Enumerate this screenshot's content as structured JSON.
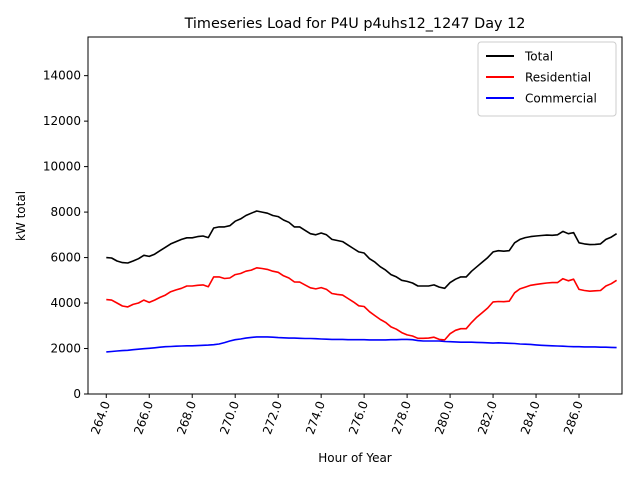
{
  "chart_data": {
    "type": "line",
    "title": "Timeseries Load for P4U p4uhs12_1247  Day 12",
    "xlabel": "Hour of Year",
    "ylabel": "kW total",
    "xlim": [
      263.15,
      288.0
    ],
    "ylim": [
      0,
      15700
    ],
    "x_ticks": [
      264,
      266,
      268,
      270,
      272,
      274,
      276,
      278,
      280,
      282,
      284,
      286
    ],
    "x_tick_labels": [
      "264.0",
      "266.0",
      "268.0",
      "270.0",
      "272.0",
      "274.0",
      "276.0",
      "278.0",
      "280.0",
      "282.0",
      "284.0",
      "286.0"
    ],
    "y_ticks": [
      0,
      2000,
      4000,
      6000,
      8000,
      10000,
      12000,
      14000
    ],
    "y_tick_labels": [
      "0",
      "2000",
      "4000",
      "6000",
      "8000",
      "10000",
      "12000",
      "14000"
    ],
    "legend_position": "top-right",
    "x": [
      264.0,
      264.25,
      264.5,
      264.75,
      265.0,
      265.25,
      265.5,
      265.75,
      266.0,
      266.25,
      266.5,
      266.75,
      267.0,
      267.25,
      267.5,
      267.75,
      268.0,
      268.25,
      268.5,
      268.75,
      269.0,
      269.25,
      269.5,
      269.75,
      270.0,
      270.25,
      270.5,
      270.75,
      271.0,
      271.25,
      271.5,
      271.75,
      272.0,
      272.25,
      272.5,
      272.75,
      273.0,
      273.25,
      273.5,
      273.75,
      274.0,
      274.25,
      274.5,
      274.75,
      275.0,
      275.25,
      275.5,
      275.75,
      276.0,
      276.25,
      276.5,
      276.75,
      277.0,
      277.25,
      277.5,
      277.75,
      278.0,
      278.25,
      278.5,
      278.75,
      279.0,
      279.25,
      279.5,
      279.75,
      280.0,
      280.25,
      280.5,
      280.75,
      281.0,
      281.25,
      281.5,
      281.75,
      282.0,
      282.25,
      282.5,
      282.75,
      283.0,
      283.25,
      283.5,
      283.75,
      284.0,
      284.25,
      284.5,
      284.75,
      285.0,
      285.25,
      285.5,
      285.75,
      286.0,
      286.25,
      286.5,
      286.75,
      287.0,
      287.25,
      287.5,
      287.75
    ],
    "series": [
      {
        "name": "Total",
        "color": "#000000",
        "values": [
          6000,
          5980,
          5850,
          5780,
          5760,
          5850,
          5950,
          6100,
          6050,
          6150,
          6300,
          6450,
          6600,
          6700,
          6800,
          6870,
          6870,
          6920,
          6950,
          6880,
          7300,
          7350,
          7350,
          7400,
          7600,
          7700,
          7850,
          7950,
          8050,
          8000,
          7950,
          7850,
          7800,
          7650,
          7550,
          7350,
          7350,
          7200,
          7050,
          7000,
          7080,
          7000,
          6800,
          6750,
          6700,
          6550,
          6400,
          6250,
          6200,
          5950,
          5800,
          5600,
          5450,
          5250,
          5150,
          5000,
          4950,
          4880,
          4750,
          4750,
          4750,
          4800,
          4700,
          4650,
          4900,
          5050,
          5150,
          5150,
          5400,
          5600,
          5800,
          6000,
          6250,
          6300,
          6280,
          6300,
          6650,
          6800,
          6880,
          6920,
          6950,
          6970,
          6990,
          6980,
          7000,
          7150,
          7050,
          7100,
          6650,
          6600,
          6570,
          6580,
          6600,
          6800,
          6900,
          7050
        ]
      },
      {
        "name": "Residential",
        "color": "#ff0000",
        "values": [
          4150,
          4130,
          4000,
          3870,
          3830,
          3940,
          4000,
          4130,
          4030,
          4130,
          4250,
          4350,
          4500,
          4580,
          4650,
          4750,
          4750,
          4780,
          4800,
          4720,
          5150,
          5150,
          5080,
          5100,
          5250,
          5300,
          5400,
          5450,
          5550,
          5520,
          5480,
          5400,
          5350,
          5200,
          5100,
          4930,
          4920,
          4800,
          4670,
          4620,
          4680,
          4600,
          4420,
          4380,
          4350,
          4200,
          4050,
          3880,
          3850,
          3620,
          3450,
          3280,
          3150,
          2950,
          2850,
          2700,
          2600,
          2550,
          2450,
          2450,
          2460,
          2500,
          2400,
          2380,
          2650,
          2800,
          2870,
          2870,
          3150,
          3380,
          3580,
          3780,
          4050,
          4070,
          4060,
          4080,
          4450,
          4620,
          4700,
          4780,
          4820,
          4850,
          4880,
          4900,
          4900,
          5070,
          4980,
          5050,
          4600,
          4550,
          4520,
          4540,
          4550,
          4750,
          4850,
          5000
        ]
      },
      {
        "name": "Commercial",
        "color": "#0000ff",
        "values": [
          1850,
          1870,
          1890,
          1910,
          1920,
          1950,
          1970,
          1990,
          2010,
          2030,
          2060,
          2080,
          2090,
          2100,
          2110,
          2120,
          2120,
          2130,
          2140,
          2150,
          2170,
          2200,
          2260,
          2330,
          2390,
          2420,
          2460,
          2490,
          2510,
          2510,
          2510,
          2500,
          2480,
          2470,
          2460,
          2460,
          2450,
          2440,
          2440,
          2430,
          2420,
          2410,
          2400,
          2400,
          2400,
          2390,
          2390,
          2390,
          2390,
          2380,
          2380,
          2380,
          2380,
          2390,
          2390,
          2400,
          2400,
          2390,
          2350,
          2330,
          2330,
          2330,
          2330,
          2310,
          2300,
          2290,
          2280,
          2280,
          2280,
          2270,
          2260,
          2250,
          2240,
          2250,
          2240,
          2230,
          2220,
          2200,
          2190,
          2180,
          2160,
          2140,
          2130,
          2120,
          2110,
          2100,
          2090,
          2080,
          2080,
          2070,
          2070,
          2070,
          2060,
          2060,
          2050,
          2040
        ]
      }
    ]
  }
}
